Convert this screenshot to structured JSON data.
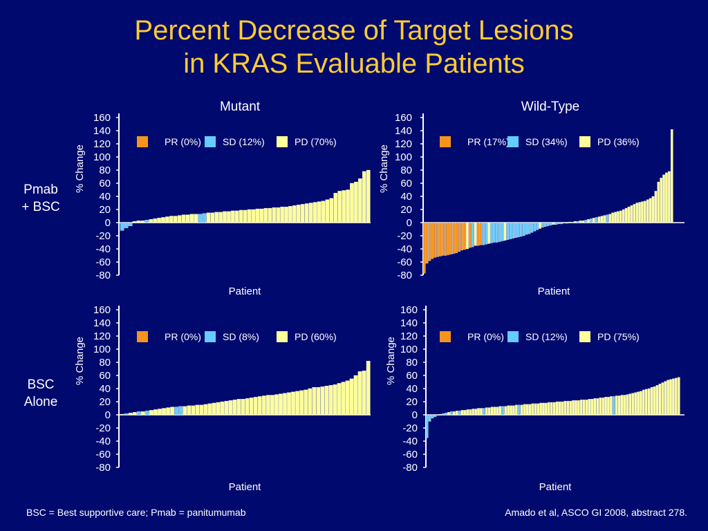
{
  "title": {
    "line1": "Percent Decrease of Target Lesions",
    "line2": "in KRAS Evaluable Patients"
  },
  "column_headers": [
    "Mutant",
    "Wild-Type"
  ],
  "row_headers": [
    [
      "Pmab",
      "+ BSC"
    ],
    [
      "BSC",
      "Alone"
    ]
  ],
  "footnote_left": "BSC = Best supportive care; Pmab = panitumumab",
  "footnote_right": "Amado et al, ASCO GI  2008, abstract 278.",
  "colors": {
    "background": "#000a6e",
    "title": "#ffcc33",
    "PR": "#f7941d",
    "SD": "#66ccff",
    "PD": "#ffff99"
  },
  "chart_data": [
    {
      "type": "bar",
      "panel": "Mutant / Pmab + BSC",
      "xlabel": "Patient",
      "ylabel": "% Change",
      "ylim": [
        -80,
        160
      ],
      "yticks": [
        "160",
        "140",
        "120",
        "100",
        "80",
        "60",
        "40",
        "20",
        "0",
        "-20",
        "-40",
        "-60",
        "-80"
      ],
      "legend": [
        {
          "key": "PR",
          "label": "PR (0%)"
        },
        {
          "key": "SD",
          "label": "SD (12%)"
        },
        {
          "key": "PD",
          "label": "PD (70%)"
        }
      ],
      "values": [
        -12,
        -8,
        -5,
        2,
        3,
        3,
        4,
        5,
        6,
        7,
        8,
        9,
        10,
        10,
        11,
        12,
        12,
        13,
        13,
        13,
        14,
        15,
        15,
        16,
        16,
        17,
        17,
        18,
        18,
        19,
        19,
        20,
        20,
        21,
        21,
        22,
        22,
        23,
        23,
        24,
        24,
        25,
        26,
        27,
        28,
        29,
        30,
        31,
        32,
        33,
        35,
        37,
        45,
        48,
        49,
        50,
        60,
        62,
        67,
        78,
        80
      ],
      "categories": [
        "SD",
        "SD",
        "SD",
        "PD",
        "PD",
        "PD",
        "SD",
        "PD",
        "PD",
        "PD",
        "PD",
        "PD",
        "PD",
        "PD",
        "PD",
        "PD",
        "PD",
        "PD",
        "PD",
        "SD",
        "SD",
        "PD",
        "PD",
        "PD",
        "PD",
        "PD",
        "PD",
        "PD",
        "PD",
        "PD",
        "PD",
        "PD",
        "PD",
        "PD",
        "PD",
        "PD",
        "PD",
        "PD",
        "PD",
        "PD",
        "PD",
        "PD",
        "PD",
        "PD",
        "PD",
        "PD",
        "PD",
        "PD",
        "PD",
        "PD",
        "PD",
        "PD",
        "PD",
        "PD",
        "PD",
        "PD",
        "PD",
        "PD",
        "PD",
        "PD",
        "PD"
      ]
    },
    {
      "type": "bar",
      "panel": "Wild-Type / Pmab + BSC",
      "xlabel": "Patient",
      "ylabel": "% Change",
      "ylim": [
        -80,
        160
      ],
      "yticks": [
        "160",
        "140",
        "120",
        "100",
        "80",
        "60",
        "40",
        "20",
        "0",
        "-20",
        "-40",
        "-60",
        "-80"
      ],
      "legend": [
        {
          "key": "PR",
          "label": "PR (17%)"
        },
        {
          "key": "SD",
          "label": "SD (34%)"
        },
        {
          "key": "PD",
          "label": "PD (36%)"
        }
      ],
      "values": [
        -77,
        -62,
        -58,
        -55,
        -53,
        -52,
        -51,
        -50,
        -50,
        -49,
        -48,
        -47,
        -46,
        -44,
        -42,
        -41,
        -40,
        -38,
        -37,
        -35,
        -35,
        -34,
        -34,
        -33,
        -32,
        -31,
        -30,
        -30,
        -29,
        -28,
        -27,
        -26,
        -25,
        -24,
        -23,
        -22,
        -21,
        -20,
        -18,
        -17,
        -15,
        -13,
        -11,
        -9,
        -7,
        -6,
        -5,
        -4,
        -3,
        -3,
        -2,
        -2,
        -1,
        -1,
        1,
        1,
        2,
        2,
        3,
        3,
        4,
        5,
        6,
        7,
        8,
        9,
        10,
        11,
        12,
        13,
        15,
        16,
        17,
        18,
        20,
        22,
        24,
        26,
        28,
        30,
        31,
        32,
        33,
        35,
        37,
        40,
        48,
        62,
        68,
        73,
        76,
        78,
        142
      ],
      "categories": [
        "PR",
        "PR",
        "PR",
        "PR",
        "PR",
        "PR",
        "PR",
        "PR",
        "PR",
        "PR",
        "PR",
        "PR",
        "PR",
        "PR",
        "PR",
        "PR",
        "PD",
        "PR",
        "SD",
        "PD",
        "PR",
        "PR",
        "SD",
        "SD",
        "PD",
        "SD",
        "SD",
        "SD",
        "SD",
        "SD",
        "PD",
        "SD",
        "SD",
        "SD",
        "SD",
        "SD",
        "SD",
        "SD",
        "SD",
        "SD",
        "SD",
        "SD",
        "SD",
        "PD",
        "SD",
        "SD",
        "SD",
        "SD",
        "PD",
        "SD",
        "SD",
        "SD",
        "SD",
        "PD",
        "PD",
        "SD",
        "PD",
        "SD",
        "PD",
        "PD",
        "SD",
        "PD",
        "SD",
        "PD",
        "SD",
        "PD",
        "PD",
        "PD",
        "SD",
        "PD",
        "PD",
        "PD",
        "PD",
        "PD",
        "PD",
        "PD",
        "PD",
        "PD",
        "PD",
        "PD",
        "PD",
        "PD",
        "PD",
        "PD",
        "PD",
        "PD",
        "PD",
        "PD",
        "PD",
        "PD",
        "PD",
        "PD",
        "PD"
      ]
    },
    {
      "type": "bar",
      "panel": "Mutant / BSC Alone",
      "xlabel": "Patient",
      "ylabel": "% Change",
      "ylim": [
        -80,
        160
      ],
      "yticks": [
        "160",
        "140",
        "120",
        "100",
        "80",
        "60",
        "40",
        "20",
        "0",
        "-20",
        "-40",
        "-60",
        "-80"
      ],
      "legend": [
        {
          "key": "PR",
          "label": "PR (0%)"
        },
        {
          "key": "SD",
          "label": "SD (8%)"
        },
        {
          "key": "PD",
          "label": "PD (60%)"
        }
      ],
      "values": [
        1,
        2,
        3,
        4,
        5,
        5,
        6,
        7,
        8,
        9,
        10,
        11,
        12,
        12,
        13,
        13,
        14,
        14,
        15,
        15,
        16,
        17,
        18,
        19,
        20,
        21,
        22,
        23,
        24,
        24,
        25,
        26,
        27,
        28,
        29,
        30,
        30,
        31,
        32,
        33,
        34,
        35,
        36,
        37,
        38,
        40,
        42,
        42,
        43,
        44,
        45,
        46,
        48,
        50,
        52,
        55,
        60,
        66,
        67,
        82
      ],
      "categories": [
        "PD",
        "SD",
        "PD",
        "PD",
        "SD",
        "PD",
        "SD",
        "PD",
        "PD",
        "PD",
        "PD",
        "PD",
        "PD",
        "SD",
        "SD",
        "PD",
        "PD",
        "PD",
        "PD",
        "PD",
        "PD",
        "PD",
        "PD",
        "PD",
        "PD",
        "PD",
        "PD",
        "PD",
        "PD",
        "PD",
        "PD",
        "PD",
        "PD",
        "PD",
        "PD",
        "PD",
        "PD",
        "PD",
        "PD",
        "PD",
        "PD",
        "PD",
        "PD",
        "PD",
        "PD",
        "PD",
        "PD",
        "PD",
        "PD",
        "PD",
        "PD",
        "PD",
        "PD",
        "PD",
        "PD",
        "PD",
        "PD",
        "PD",
        "PD",
        "PD"
      ]
    },
    {
      "type": "bar",
      "panel": "Wild-Type / BSC Alone",
      "xlabel": "Patient",
      "ylabel": "% Change",
      "ylim": [
        -80,
        160
      ],
      "yticks": [
        "160",
        "140",
        "120",
        "100",
        "80",
        "60",
        "40",
        "20",
        "0",
        "-20",
        "-40",
        "-60",
        "-80"
      ],
      "legend": [
        {
          "key": "PR",
          "label": "PR (0%)"
        },
        {
          "key": "SD",
          "label": "SD (12%)"
        },
        {
          "key": "PD",
          "label": "PD (75%)"
        }
      ],
      "values": [
        -35,
        -10,
        -5,
        -3,
        -1,
        1,
        2,
        3,
        4,
        5,
        5,
        6,
        6,
        7,
        7,
        8,
        8,
        9,
        9,
        10,
        10,
        10,
        11,
        11,
        12,
        12,
        12,
        13,
        13,
        13,
        14,
        14,
        14,
        15,
        15,
        15,
        16,
        16,
        16,
        17,
        17,
        17,
        18,
        18,
        18,
        19,
        19,
        19,
        20,
        20,
        20,
        21,
        21,
        21,
        22,
        22,
        22,
        23,
        23,
        23,
        24,
        24,
        25,
        25,
        26,
        26,
        27,
        27,
        28,
        28,
        29,
        29,
        30,
        30,
        31,
        32,
        33,
        34,
        35,
        36,
        38,
        39,
        40,
        42,
        43,
        45,
        47,
        49,
        51,
        53,
        54,
        55,
        56,
        57
      ],
      "categories": [
        "SD",
        "SD",
        "SD",
        "SD",
        "SD",
        "PD",
        "SD",
        "SD",
        "PD",
        "SD",
        "PD",
        "PD",
        "SD",
        "PD",
        "PD",
        "PD",
        "PD",
        "PD",
        "PD",
        "PD",
        "PD",
        "SD",
        "PD",
        "PD",
        "PD",
        "PD",
        "PD",
        "PD",
        "SD",
        "PD",
        "PD",
        "PD",
        "PD",
        "PD",
        "SD",
        "PD",
        "PD",
        "PD",
        "PD",
        "PD",
        "PD",
        "PD",
        "PD",
        "PD",
        "PD",
        "PD",
        "PD",
        "PD",
        "PD",
        "PD",
        "PD",
        "PD",
        "PD",
        "PD",
        "PD",
        "PD",
        "PD",
        "PD",
        "PD",
        "PD",
        "PD",
        "PD",
        "PD",
        "PD",
        "PD",
        "PD",
        "PD",
        "PD",
        "PD",
        "SD",
        "PD",
        "PD",
        "PD",
        "PD",
        "PD",
        "PD",
        "PD",
        "PD",
        "PD",
        "PD",
        "PD",
        "PD",
        "PD",
        "PD",
        "PD",
        "PD",
        "PD",
        "PD",
        "PD",
        "PD",
        "PD",
        "PD",
        "PD",
        "PD"
      ]
    }
  ]
}
